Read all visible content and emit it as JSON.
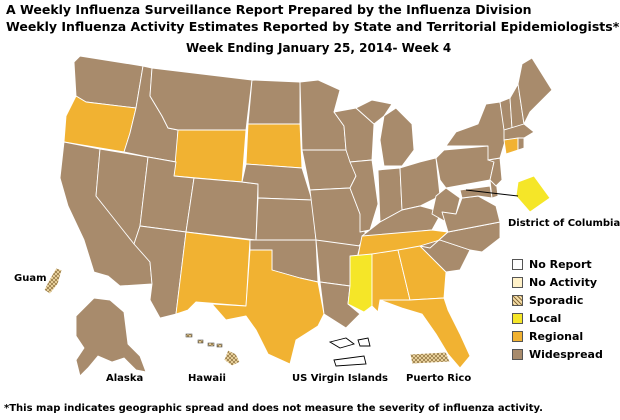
{
  "title_line1": "A Weekly Influenza Surveillance Report Prepared by the Influenza Division",
  "title_line2": "Weekly Influenza Activity Estimates Reported by State and Territorial Epidemiologists*",
  "week_label": "Week Ending January 25, 2014- Week 4",
  "footnote": "*This map indicates geographic spread and does not measure the severity of influenza activity.",
  "labels": {
    "dc": "District of Columbia",
    "guam": "Guam",
    "alaska": "Alaska",
    "hawaii": "Hawaii",
    "usvi": "US Virgin Islands",
    "pr": "Puerto Rico"
  },
  "colors": {
    "no_report": "#ffffff",
    "no_activity": "#fff1c8",
    "sporadic": "#f3dca6",
    "local": "#f5e628",
    "regional": "#f1b232",
    "widespread": "#a88b6c",
    "border": "#ffffff"
  },
  "legend": [
    {
      "key": "no_report",
      "label": "No Report"
    },
    {
      "key": "no_activity",
      "label": "No Activity"
    },
    {
      "key": "sporadic",
      "label": "Sporadic"
    },
    {
      "key": "local",
      "label": "Local"
    },
    {
      "key": "regional",
      "label": "Regional"
    },
    {
      "key": "widespread",
      "label": "Widespread"
    }
  ],
  "regions": [
    {
      "name": "Washington",
      "level": "widespread"
    },
    {
      "name": "Oregon",
      "level": "regional"
    },
    {
      "name": "California",
      "level": "widespread"
    },
    {
      "name": "Nevada",
      "level": "widespread"
    },
    {
      "name": "Idaho",
      "level": "widespread"
    },
    {
      "name": "Montana",
      "level": "widespread"
    },
    {
      "name": "Wyoming",
      "level": "regional"
    },
    {
      "name": "Utah",
      "level": "widespread"
    },
    {
      "name": "Arizona",
      "level": "widespread"
    },
    {
      "name": "Colorado",
      "level": "widespread"
    },
    {
      "name": "New Mexico",
      "level": "regional"
    },
    {
      "name": "North Dakota",
      "level": "widespread"
    },
    {
      "name": "South Dakota",
      "level": "regional"
    },
    {
      "name": "Nebraska",
      "level": "widespread"
    },
    {
      "name": "Kansas",
      "level": "widespread"
    },
    {
      "name": "Oklahoma",
      "level": "widespread"
    },
    {
      "name": "Texas",
      "level": "regional"
    },
    {
      "name": "Minnesota",
      "level": "widespread"
    },
    {
      "name": "Iowa",
      "level": "widespread"
    },
    {
      "name": "Missouri",
      "level": "widespread"
    },
    {
      "name": "Arkansas",
      "level": "widespread"
    },
    {
      "name": "Louisiana",
      "level": "widespread"
    },
    {
      "name": "Wisconsin",
      "level": "widespread"
    },
    {
      "name": "Illinois",
      "level": "widespread"
    },
    {
      "name": "Michigan",
      "level": "widespread"
    },
    {
      "name": "Indiana",
      "level": "widespread"
    },
    {
      "name": "Ohio",
      "level": "widespread"
    },
    {
      "name": "Kentucky",
      "level": "widespread"
    },
    {
      "name": "Tennessee",
      "level": "regional"
    },
    {
      "name": "Mississippi",
      "level": "local"
    },
    {
      "name": "Alabama",
      "level": "regional"
    },
    {
      "name": "Georgia",
      "level": "regional"
    },
    {
      "name": "Florida",
      "level": "regional"
    },
    {
      "name": "South Carolina",
      "level": "widespread"
    },
    {
      "name": "North Carolina",
      "level": "widespread"
    },
    {
      "name": "Virginia",
      "level": "widespread"
    },
    {
      "name": "West Virginia",
      "level": "widespread"
    },
    {
      "name": "Pennsylvania",
      "level": "widespread"
    },
    {
      "name": "New York",
      "level": "widespread"
    },
    {
      "name": "Vermont",
      "level": "widespread"
    },
    {
      "name": "New Hampshire",
      "level": "widespread"
    },
    {
      "name": "Maine",
      "level": "widespread"
    },
    {
      "name": "Massachusetts",
      "level": "widespread"
    },
    {
      "name": "Connecticut",
      "level": "regional"
    },
    {
      "name": "Rhode Island",
      "level": "widespread"
    },
    {
      "name": "New Jersey",
      "level": "widespread"
    },
    {
      "name": "Delaware",
      "level": "widespread"
    },
    {
      "name": "Maryland",
      "level": "widespread"
    },
    {
      "name": "District of Columbia",
      "level": "local"
    },
    {
      "name": "Alaska",
      "level": "widespread"
    },
    {
      "name": "Hawaii",
      "level": "sporadic"
    },
    {
      "name": "Guam",
      "level": "sporadic"
    },
    {
      "name": "US Virgin Islands",
      "level": "no_report"
    },
    {
      "name": "Puerto Rico",
      "level": "sporadic"
    }
  ]
}
